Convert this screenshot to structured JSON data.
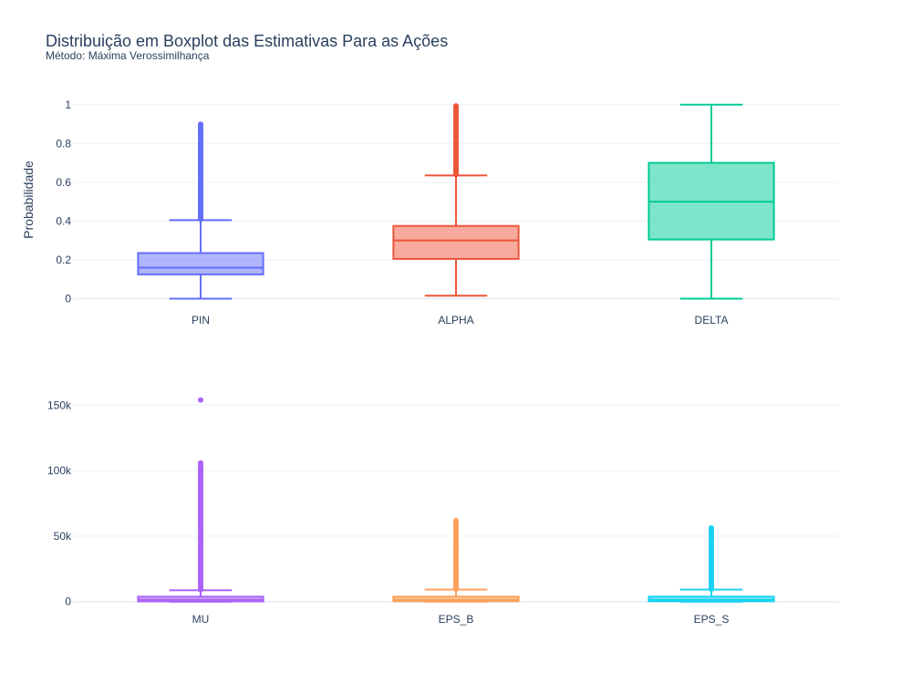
{
  "chart_data": {
    "title": "Distribuição em Boxplot das Estimativas Para as Ações",
    "subtitle": "Método: Máxima Verossimilhança",
    "panels": [
      {
        "type": "box",
        "ylabel": "Probabilidade",
        "ylim": [
          -0.04,
          1.06
        ],
        "yticks": [
          0,
          0.2,
          0.4,
          0.6,
          0.8,
          1
        ],
        "ytick_labels": [
          "0",
          "0.2",
          "0.4",
          "0.6",
          "0.8",
          "1"
        ],
        "series": [
          {
            "name": "PIN",
            "color": "#636efa",
            "lowerfence": 0.0,
            "q1": 0.125,
            "median": 0.16,
            "q3": 0.235,
            "upperfence": 0.405,
            "outliers": {
              "from": 0.41,
              "to": 0.905
            }
          },
          {
            "name": "ALPHA",
            "color": "#ef553b",
            "lowerfence": 0.015,
            "q1": 0.205,
            "median": 0.3,
            "q3": 0.375,
            "upperfence": 0.635,
            "outliers": {
              "from": 0.64,
              "to": 1.0
            }
          },
          {
            "name": "DELTA",
            "color": "#00cc96",
            "lowerfence": 0.0,
            "q1": 0.305,
            "median": 0.5,
            "q3": 0.7,
            "upperfence": 1.0,
            "outliers": null
          }
        ]
      },
      {
        "type": "box",
        "ylabel": "",
        "ylim": [
          -3000,
          160000
        ],
        "yticks": [
          0,
          50000,
          100000,
          150000
        ],
        "ytick_labels": [
          "0",
          "50k",
          "100k",
          "150k"
        ],
        "series": [
          {
            "name": "MU",
            "color": "#ab63fa",
            "lowerfence": 0,
            "q1": 200,
            "median": 1500,
            "q3": 3800,
            "upperfence": 8700,
            "outliers": {
              "from": 9000,
              "to": 107000,
              "extra": [
                154000
              ]
            }
          },
          {
            "name": "EPS_B",
            "color": "#ffa15a",
            "lowerfence": 0,
            "q1": 300,
            "median": 1500,
            "q3": 3800,
            "upperfence": 9200,
            "outliers": {
              "from": 9500,
              "to": 62000
            }
          },
          {
            "name": "EPS_S",
            "color": "#19d3f3",
            "lowerfence": 0,
            "q1": 300,
            "median": 1500,
            "q3": 3800,
            "upperfence": 9200,
            "outliers": {
              "from": 9500,
              "to": 57000
            }
          }
        ]
      }
    ]
  }
}
